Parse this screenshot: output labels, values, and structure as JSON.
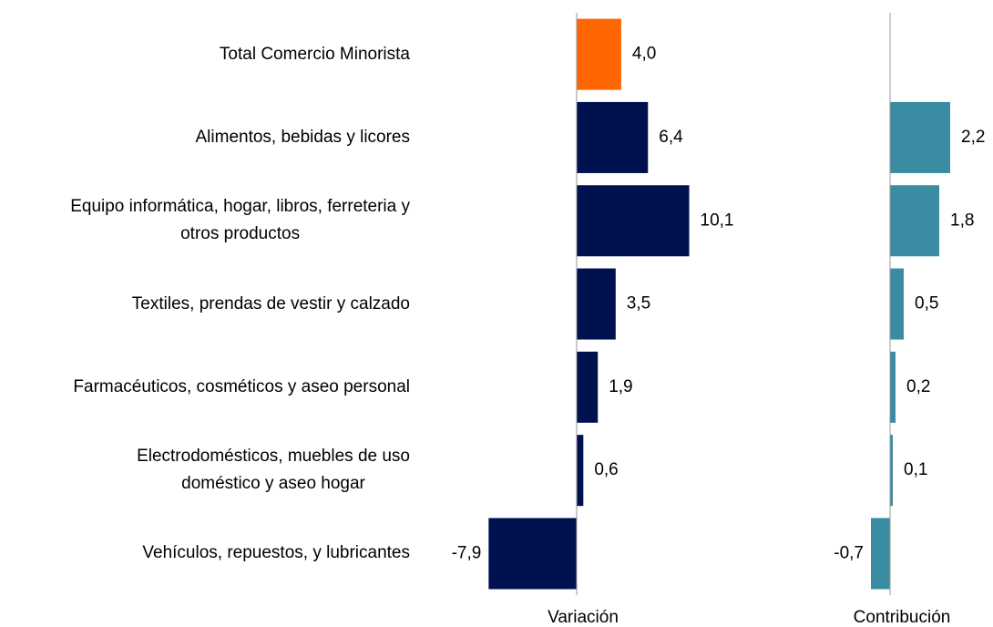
{
  "chart_data": [
    {
      "type": "hbar",
      "xlabel": "Variación",
      "categories": [
        "Total Comercio Minorista",
        "Alimentos, bebidas y licores",
        "Equipo informática, hogar, libros, ferreteria y\notros productos",
        "Textiles, prendas de vestir y calzado",
        "Farmacéuticos, cosméticos y aseo personal",
        "Electrodomésticos, muebles de uso\ndoméstico y aseo hogar",
        "Vehículos, repuestos,  y lubricantes"
      ],
      "values": [
        4.0,
        6.4,
        10.1,
        3.5,
        1.9,
        0.6,
        -7.9
      ],
      "value_labels": [
        "4,0",
        "6,4",
        "10,1",
        "3,5",
        "1,9",
        "0,6",
        "-7,9"
      ],
      "colors": [
        "#ff6600",
        "#001150",
        "#001150",
        "#001150",
        "#001150",
        "#001150",
        "#001150"
      ],
      "xlim": [
        -8.5,
        13
      ]
    },
    {
      "type": "hbar",
      "xlabel": "Contribución",
      "values": [
        null,
        2.2,
        1.8,
        0.5,
        0.2,
        0.1,
        -0.7
      ],
      "value_labels": [
        null,
        "2,2",
        "1,8",
        "0,5",
        "0,2",
        "0,1",
        "-0,7"
      ],
      "color": "#3a8ca3",
      "xlim": [
        -1,
        2.3
      ]
    }
  ]
}
